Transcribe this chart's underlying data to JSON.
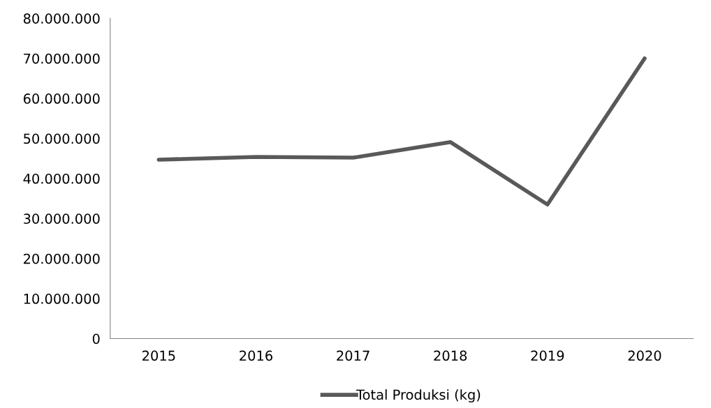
{
  "chart_data": {
    "type": "line",
    "categories": [
      "2015",
      "2016",
      "2017",
      "2018",
      "2019",
      "2020"
    ],
    "series": [
      {
        "name": "Total Produksi (kg)",
        "color": "#595959",
        "values": [
          44700000,
          45400000,
          45200000,
          49100000,
          33500000,
          70000000
        ]
      }
    ],
    "ylim": [
      0,
      80000000
    ],
    "yticks": [
      {
        "value": 0,
        "label": "0"
      },
      {
        "value": 10000000,
        "label": "10.000.000"
      },
      {
        "value": 20000000,
        "label": "20.000.000"
      },
      {
        "value": 30000000,
        "label": "30.000.000"
      },
      {
        "value": 40000000,
        "label": "40.000.000"
      },
      {
        "value": 50000000,
        "label": "50.000.000"
      },
      {
        "value": 60000000,
        "label": "60.000.000"
      },
      {
        "value": 70000000,
        "label": "70.000.000"
      },
      {
        "value": 80000000,
        "label": "80.000.000"
      }
    ],
    "grid": false,
    "legend": "bottom",
    "marker": "none",
    "line_style": "solid"
  }
}
